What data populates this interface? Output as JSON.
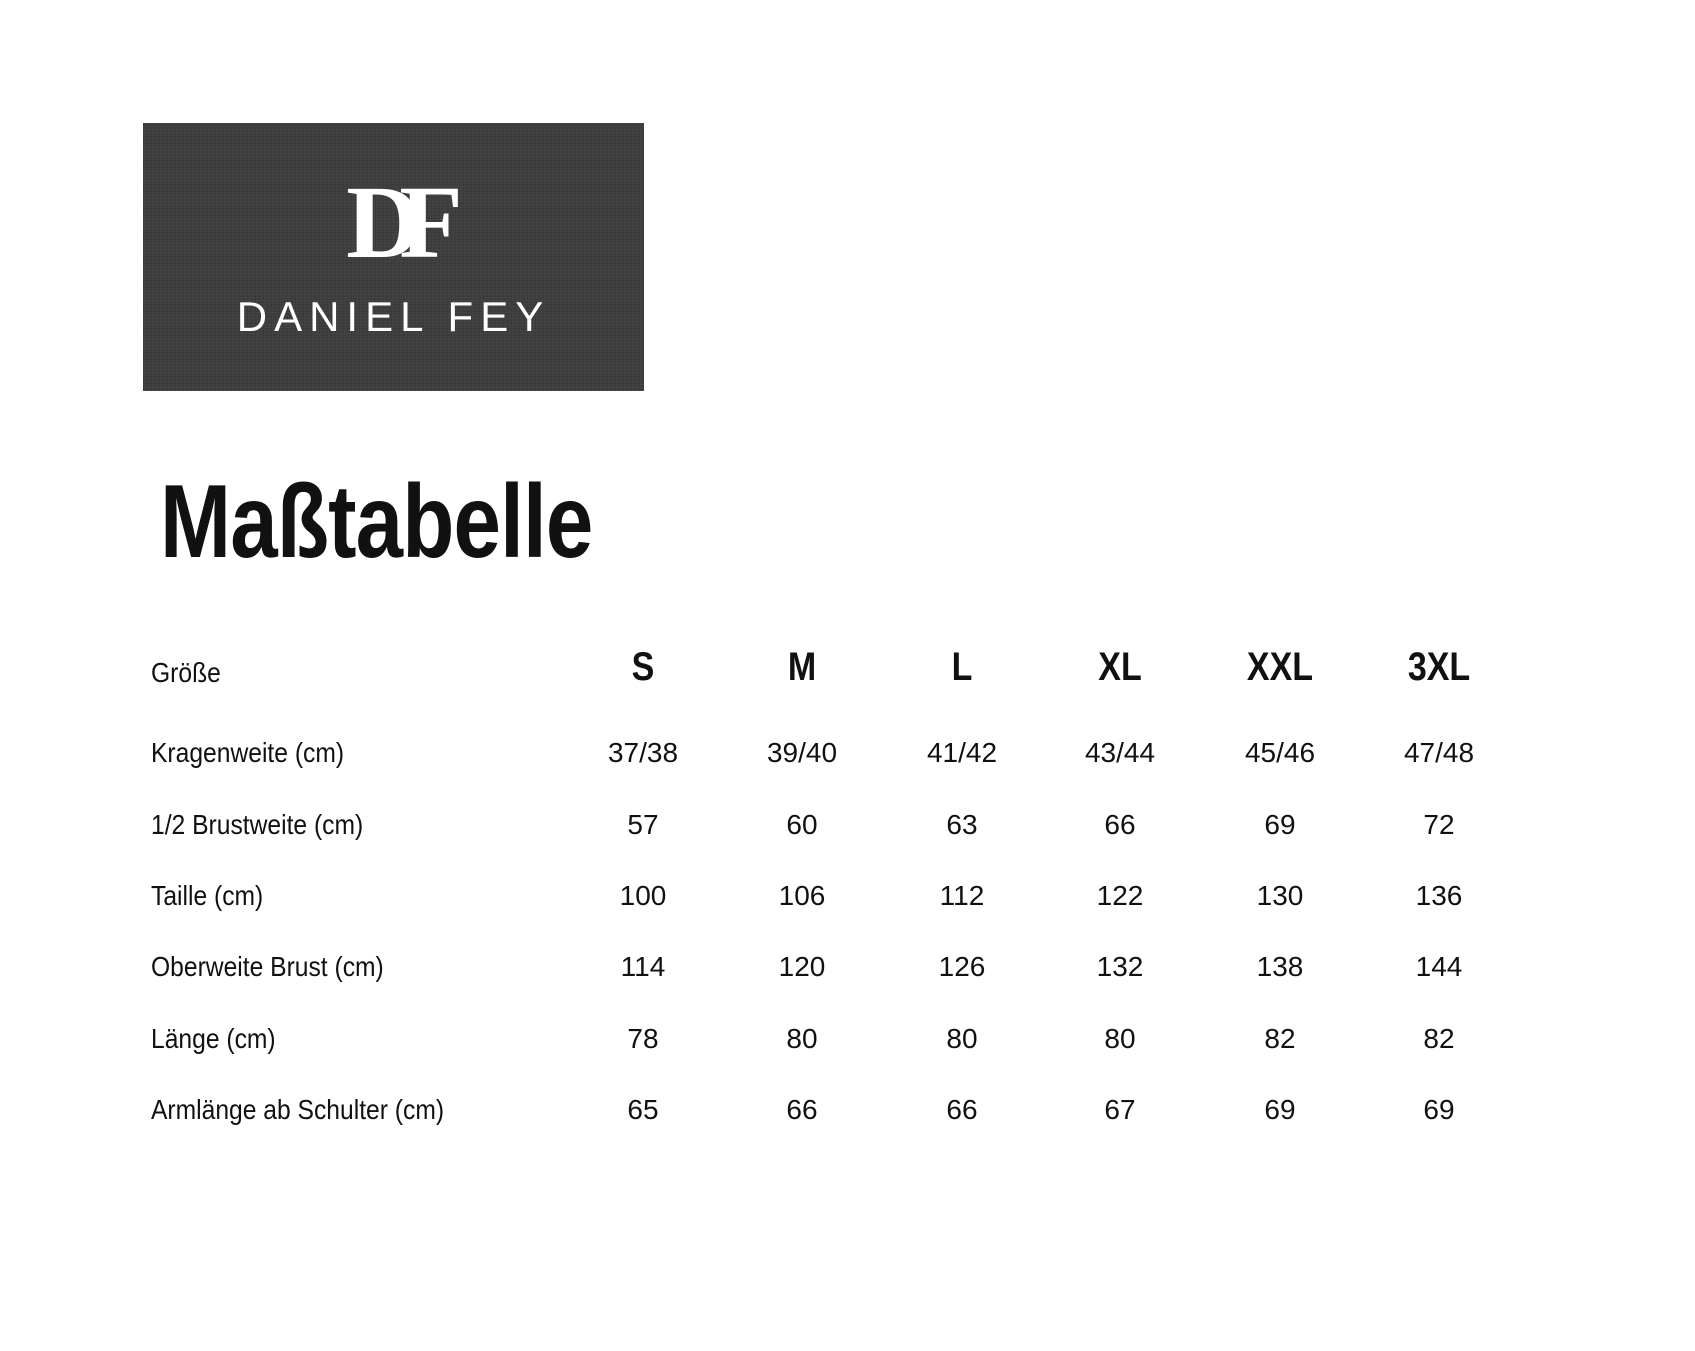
{
  "logo": {
    "monogram": "DF",
    "brand": "DANIEL FEY",
    "background": "#3e3e3e"
  },
  "title": "Maßtabelle",
  "table": {
    "header_label": "Größe",
    "sizes": [
      "S",
      "M",
      "L",
      "XL",
      "XXL",
      "3XL"
    ],
    "rows": [
      {
        "label": "Kragenweite (cm)",
        "values": [
          "37/38",
          "39/40",
          "41/42",
          "43/44",
          "45/46",
          "47/48"
        ]
      },
      {
        "label": "1/2 Brustweite (cm)",
        "values": [
          "57",
          "60",
          "63",
          "66",
          "69",
          "72"
        ]
      },
      {
        "label": "Taille (cm)",
        "values": [
          "100",
          "106",
          "112",
          "122",
          "130",
          "136"
        ]
      },
      {
        "label": "Oberweite Brust (cm)",
        "values": [
          "114",
          "120",
          "126",
          "132",
          "138",
          "144"
        ]
      },
      {
        "label": "Länge (cm)",
        "values": [
          "78",
          "80",
          "80",
          "80",
          "82",
          "82"
        ]
      },
      {
        "label": "Armlänge ab Schulter (cm)",
        "values": [
          "65",
          "66",
          "66",
          "67",
          "69",
          "69"
        ]
      }
    ]
  }
}
